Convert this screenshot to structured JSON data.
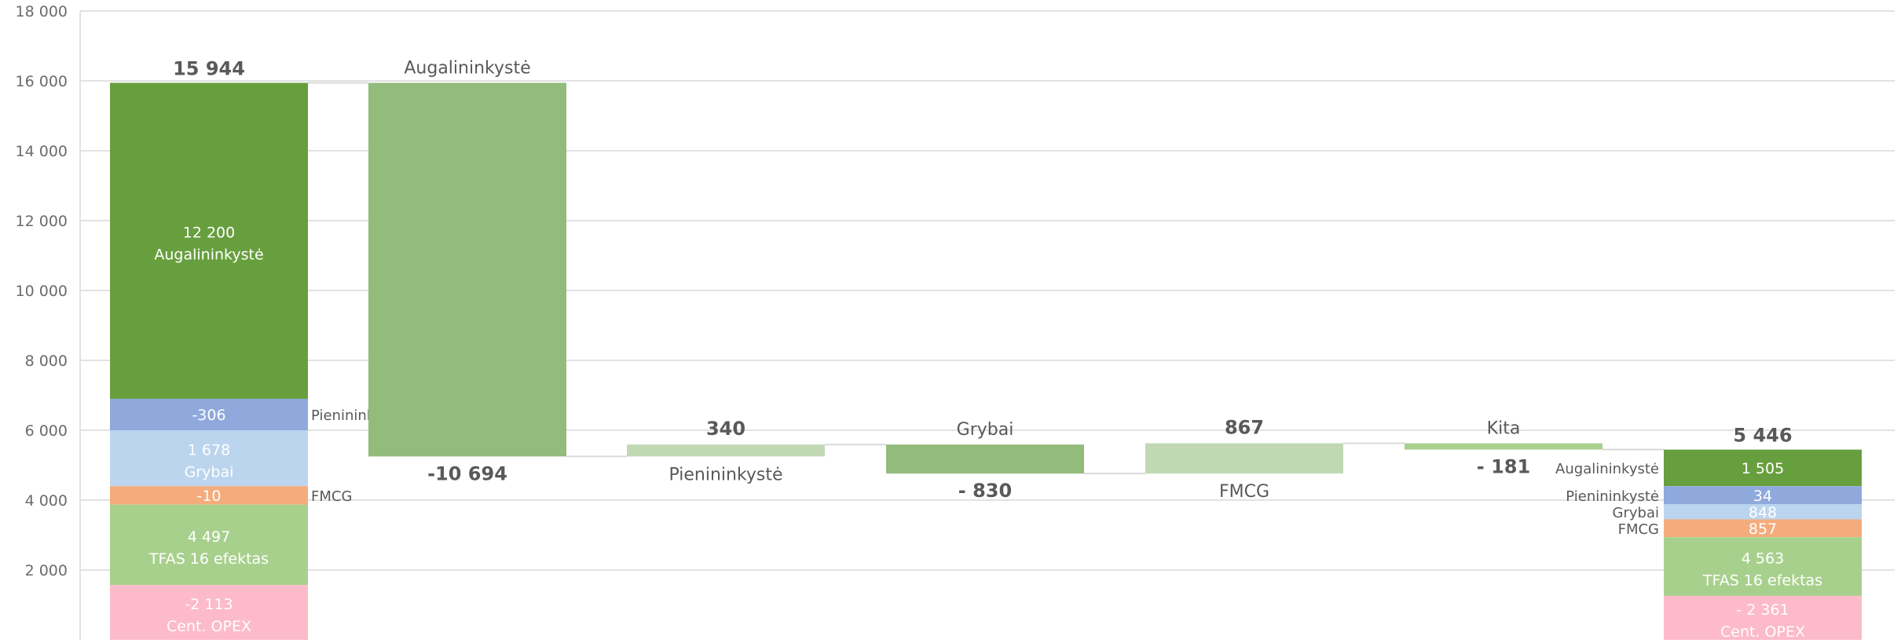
{
  "chart_data": {
    "type": "bar",
    "subtype": "waterfall",
    "title": "",
    "xlabel": "",
    "ylabel": "",
    "ylim": [
      0,
      18000
    ],
    "y_ticks": [
      "2 000",
      "4 000",
      "6 000",
      "8 000",
      "10 000",
      "12 000",
      "14 000",
      "16 000",
      "18 000"
    ],
    "grid": true,
    "legend": "none",
    "colors": {
      "augalininkyste": "#689F3E",
      "augalininkyste_step": "#92BB7C",
      "pienininkyste": "#8FA9DD",
      "grybai": "#BCD5EE",
      "fmcg": "#F4AC7C",
      "tfas": "#A8D08D",
      "opex": "#FDBAC8",
      "light_step": "#C0D9B4",
      "step_line": "#A9D18E",
      "grid": "#D9D9D9"
    },
    "start_bar": {
      "total": 15944,
      "total_label": "15 944",
      "segments": [
        {
          "name": "Augalininkystė",
          "value": 12200,
          "value_label": "12 200",
          "label_inside": true
        },
        {
          "name": "Pienininkystė",
          "value": -306,
          "value_label": "-306",
          "label_inside": false
        },
        {
          "name": "Grybai",
          "value": 1678,
          "value_label": "1 678",
          "label_inside": true
        },
        {
          "name": "FMCG",
          "value": -10,
          "value_label": "-10",
          "label_inside": false
        },
        {
          "name": "TFAS 16 efektas",
          "value": 4497,
          "value_label": "4 497",
          "label_inside": true
        },
        {
          "name": "Cent. OPEX",
          "value": -2113,
          "value_label": "-2 113",
          "label_inside": true
        }
      ]
    },
    "steps": [
      {
        "name": "Augalininkystė",
        "from": 15944,
        "to": 5250,
        "value": -10694,
        "value_label": "-10 694"
      },
      {
        "name": "Pienininkystė",
        "from": 5250,
        "to": 5590,
        "value": 340,
        "value_label": "340"
      },
      {
        "name": "Grybai",
        "from": 5590,
        "to": 4760,
        "value": -830,
        "value_label": "- 830"
      },
      {
        "name": "FMCG",
        "from": 4760,
        "to": 5627,
        "value": 867,
        "value_label": "867"
      },
      {
        "name": "Kita",
        "from": 5627,
        "to": 5446,
        "value": -181,
        "value_label": "- 181"
      }
    ],
    "end_bar": {
      "total": 5446,
      "total_label": "5 446",
      "segments": [
        {
          "name": "Augalininkystė",
          "value": 1505,
          "value_label": "1 505"
        },
        {
          "name": "Pienininkystė",
          "value": 34,
          "value_label": "34"
        },
        {
          "name": "Grybai",
          "value": 848,
          "value_label": "848"
        },
        {
          "name": "FMCG",
          "value": 857,
          "value_label": "857"
        },
        {
          "name": "TFAS 16 efektas",
          "value": 4563,
          "value_label": "4 563"
        },
        {
          "name": "Cent. OPEX",
          "value": -2361,
          "value_label": "- 2 361"
        }
      ]
    }
  }
}
